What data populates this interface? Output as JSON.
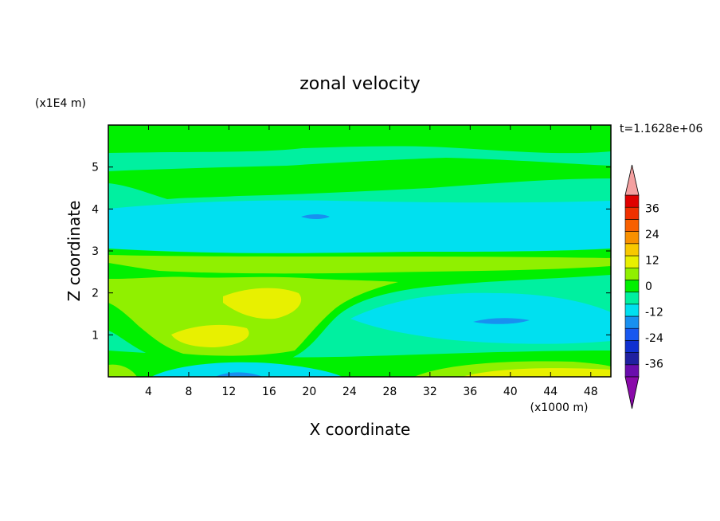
{
  "chart_data": {
    "type": "heatmap",
    "title": "zonal velocity",
    "xlabel": "X coordinate",
    "ylabel": "Z coordinate",
    "x_scale_label": "(x1000 m)",
    "y_scale_label": "(x1E4 m)",
    "time_label": "t=1.1628e+06",
    "xlim": [
      0,
      50
    ],
    "ylim": [
      0,
      6
    ],
    "x_ticks": [
      4,
      8,
      12,
      16,
      20,
      24,
      28,
      32,
      36,
      40,
      44,
      48
    ],
    "y_ticks": [
      1,
      2,
      3,
      4,
      5
    ],
    "x_tick_labels": [
      "4",
      "8",
      "12",
      "16",
      "20",
      "24",
      "28",
      "32",
      "36",
      "40",
      "44",
      "48"
    ],
    "y_tick_labels": [
      "1",
      "2",
      "3",
      "4",
      "5"
    ],
    "colorbar": {
      "levels": [
        -42,
        -36,
        -30,
        -24,
        -18,
        -12,
        -6,
        0,
        6,
        12,
        18,
        24,
        30,
        36,
        42
      ],
      "tick_values": [
        -36,
        -24,
        -12,
        0,
        12,
        24,
        36
      ],
      "tick_labels": [
        "-36",
        "-24",
        "-12",
        "0",
        "12",
        "24",
        "36"
      ],
      "colors": [
        "#6a0dad",
        "#2020a0",
        "#1030d0",
        "#1858f0",
        "#1890f0",
        "#00e0f0",
        "#00f0a0",
        "#00f000",
        "#90f000",
        "#e8f000",
        "#f8c800",
        "#f89000",
        "#f86000",
        "#f03000",
        "#e00000"
      ],
      "under_color": "#8a0aaa",
      "over_color": "#f4a0a0"
    },
    "field_description_values": [
      {
        "z_band": [
          3.1,
          4.2
        ],
        "value": -14
      },
      {
        "z_band": [
          4.2,
          6.0
        ],
        "value": 2
      },
      {
        "z_band": [
          2.2,
          3.0
        ],
        "value": 4
      },
      {
        "z_band": [
          0.0,
          0.4
        ],
        "value": 10
      }
    ]
  }
}
